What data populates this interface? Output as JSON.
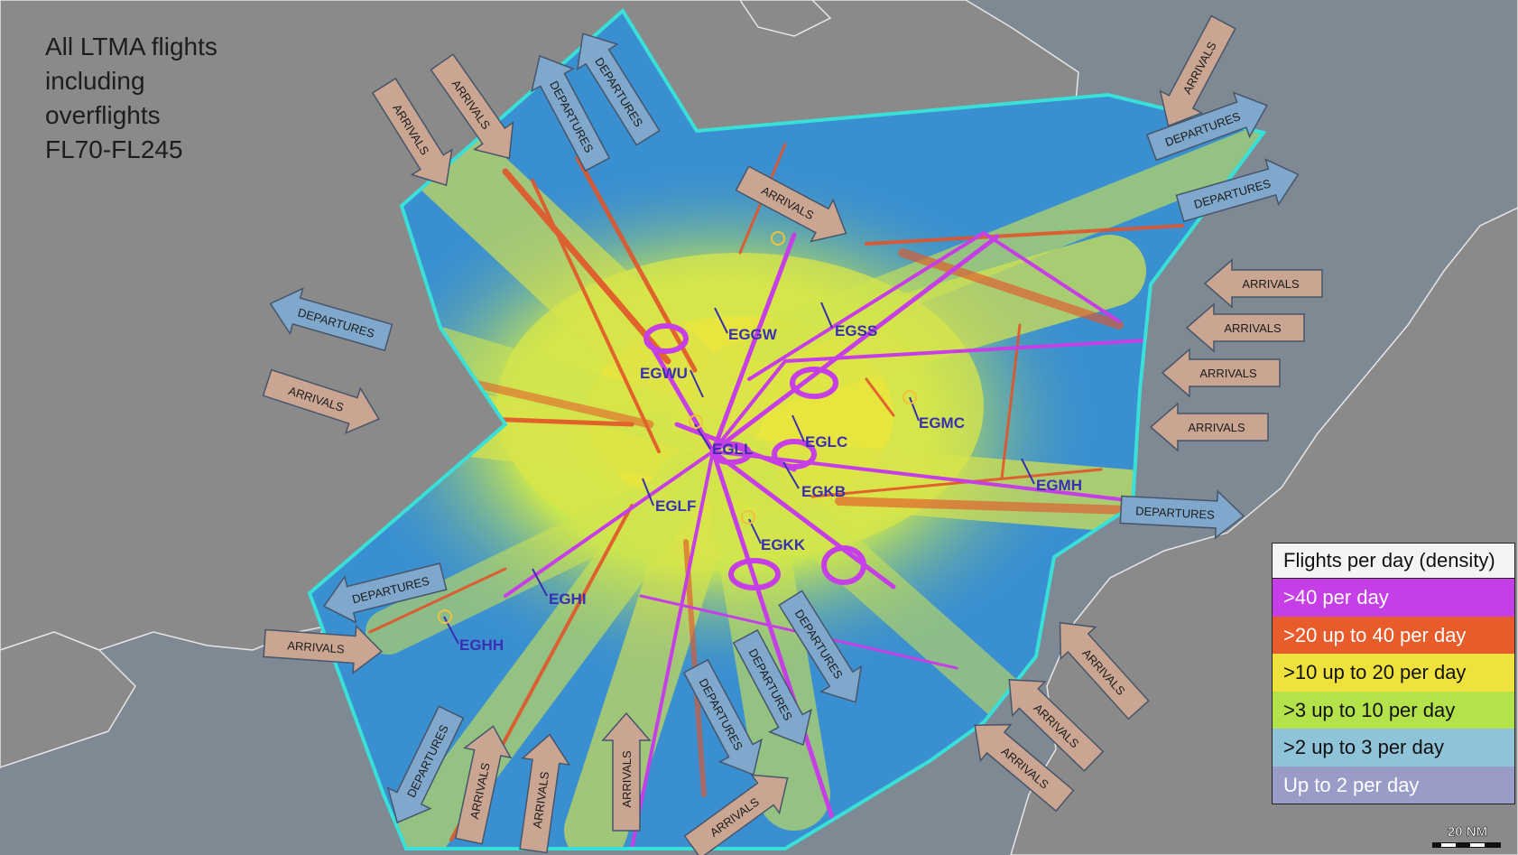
{
  "map_title_lines": [
    "All LTMA flights",
    "including",
    "overflights",
    "FL70-FL245"
  ],
  "colors": {
    "sea": "#808a96",
    "land": "#8a8a8a",
    "coast": "#e9e9e9",
    "boundary": "#38e0d8",
    "area_fill": "#3a8fd0",
    "density_gt40": "#cc3ee6",
    "density_20_40": "#e05a28",
    "density_10_20": "#ede637",
    "density_3_10": "#b4e24a",
    "density_2_3": "#8ec3d8",
    "density_le2": "#9a9cc8",
    "arrival_arrow": "#c9a592",
    "departure_arrow": "#7fa8cc",
    "airport_label": "#3a2fb0"
  },
  "airports": [
    {
      "code": "EGGW"
    },
    {
      "code": "EGSS"
    },
    {
      "code": "EGWU"
    },
    {
      "code": "EGMC"
    },
    {
      "code": "EGLC"
    },
    {
      "code": "EGLL"
    },
    {
      "code": "EGKB"
    },
    {
      "code": "EGMH"
    },
    {
      "code": "EGLF"
    },
    {
      "code": "EGKK"
    },
    {
      "code": "EGHI"
    },
    {
      "code": "EGHH"
    }
  ],
  "flow_labels": {
    "arrivals": "ARRIVALS",
    "departures": "DEPARTURES"
  },
  "legend": {
    "title": "Flights per day (density)",
    "items": [
      {
        "label": ">40 per day",
        "color": "#c53ee6"
      },
      {
        "label": ">20 up to 40 per day",
        "color": "#e85b2a"
      },
      {
        "label": ">10 up to 20 per day",
        "color": "#f0e23c"
      },
      {
        "label": ">3 up to 10 per day",
        "color": "#b4e24a"
      },
      {
        "label": ">2 up to 3 per day",
        "color": "#8ec3d8"
      },
      {
        "label": "Up to 2 per day",
        "color": "#9a9cc8"
      }
    ]
  },
  "scale": {
    "label": "20 NM"
  }
}
